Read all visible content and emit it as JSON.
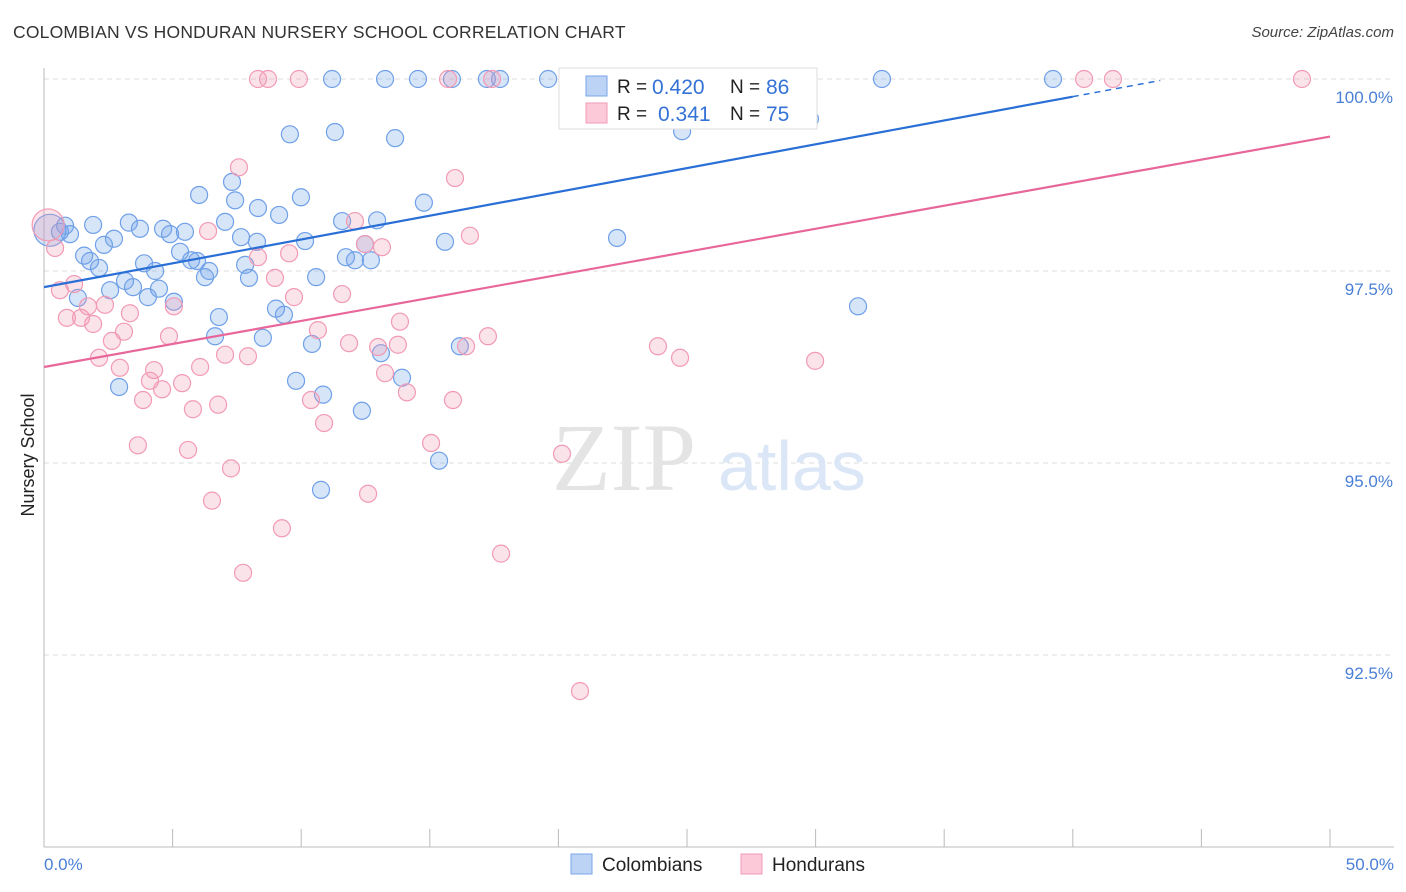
{
  "title": "COLOMBIAN VS HONDURAN NURSERY SCHOOL CORRELATION CHART",
  "source": "Source: ZipAtlas.com",
  "watermark": {
    "zip": "ZIP",
    "atlas": "atlas"
  },
  "chart_data": {
    "type": "scatter",
    "title": "COLOMBIAN VS HONDURAN NURSERY SCHOOL CORRELATION CHART",
    "xlabel": "",
    "ylabel": "Nursery School",
    "xlim": [
      0,
      50
    ],
    "ylim": [
      90,
      100.2
    ],
    "x_tick_labels": {
      "min": "0.0%",
      "max": "50.0%"
    },
    "y_ticks": [
      {
        "value": 100,
        "label": "100.0%"
      },
      {
        "value": 97.5,
        "label": "97.5%"
      },
      {
        "value": 95,
        "label": "95.0%"
      },
      {
        "value": 92.5,
        "label": "92.5%"
      }
    ],
    "grid": true,
    "legend_position": "top-center",
    "stats": [
      {
        "r_label": "R =",
        "r": "0.420",
        "n_label": "N =",
        "n": "86"
      },
      {
        "r_label": "R =",
        "r": "0.341",
        "n_label": "N =",
        "n": "75"
      }
    ],
    "series": [
      {
        "name": "Colombians",
        "color": "#6fa0e8",
        "line_color": "#2a6fd6",
        "trend": {
          "x0": 0,
          "y0": 97.29,
          "x1": 40,
          "y1": 99.77,
          "dashed_to_x": 43.4
        },
        "points": [
          [
            11.2,
            100
          ],
          [
            13.26,
            100
          ],
          [
            14.54,
            100
          ],
          [
            15.86,
            100
          ],
          [
            17.22,
            100
          ],
          [
            17.73,
            100
          ],
          [
            19.6,
            100
          ],
          [
            24.14,
            100
          ],
          [
            26.79,
            100
          ],
          [
            32.58,
            100
          ],
          [
            39.23,
            100
          ],
          [
            9.56,
            99.28
          ],
          [
            11.31,
            99.31
          ],
          [
            13.65,
            99.23
          ],
          [
            24.81,
            99.32
          ],
          [
            29.78,
            99.48
          ],
          [
            6.03,
            98.49
          ],
          [
            7.31,
            98.66
          ],
          [
            7.43,
            98.42
          ],
          [
            9.99,
            98.46
          ],
          [
            14.77,
            98.39
          ],
          [
            8.32,
            98.32
          ],
          [
            9.14,
            98.23
          ],
          [
            7.04,
            98.14
          ],
          [
            11.59,
            98.15
          ],
          [
            12.95,
            98.16
          ],
          [
            0.23,
            98.03
          ],
          [
            0.62,
            98.01
          ],
          [
            0.82,
            98.09
          ],
          [
            1.01,
            97.98
          ],
          [
            1.91,
            98.1
          ],
          [
            3.3,
            98.13
          ],
          [
            3.73,
            98.05
          ],
          [
            4.63,
            98.05
          ],
          [
            4.9,
            97.98
          ],
          [
            5.48,
            98.01
          ],
          [
            7.66,
            97.94
          ],
          [
            8.28,
            97.88
          ],
          [
            10.15,
            97.89
          ],
          [
            12.48,
            97.85
          ],
          [
            15.59,
            97.88
          ],
          [
            22.28,
            97.93
          ],
          [
            2.33,
            97.84
          ],
          [
            2.72,
            97.92
          ],
          [
            1.56,
            97.7
          ],
          [
            1.79,
            97.63
          ],
          [
            2.14,
            97.54
          ],
          [
            3.89,
            97.6
          ],
          [
            4.32,
            97.5
          ],
          [
            5.29,
            97.75
          ],
          [
            5.72,
            97.64
          ],
          [
            5.95,
            97.63
          ],
          [
            6.42,
            97.5
          ],
          [
            7.82,
            97.58
          ],
          [
            6.26,
            97.42
          ],
          [
            7.97,
            97.41
          ],
          [
            10.58,
            97.42
          ],
          [
            11.74,
            97.68
          ],
          [
            12.09,
            97.64
          ],
          [
            12.71,
            97.64
          ],
          [
            3.15,
            97.37
          ],
          [
            3.46,
            97.29
          ],
          [
            2.57,
            97.25
          ],
          [
            4.47,
            97.27
          ],
          [
            4.04,
            97.16
          ],
          [
            1.32,
            97.15
          ],
          [
            5.05,
            97.1
          ],
          [
            6.8,
            96.9
          ],
          [
            9.02,
            97.01
          ],
          [
            9.33,
            96.93
          ],
          [
            6.65,
            96.65
          ],
          [
            8.51,
            96.63
          ],
          [
            10.42,
            96.55
          ],
          [
            13.1,
            96.43
          ],
          [
            16.17,
            96.52
          ],
          [
            31.65,
            97.04
          ],
          [
            2.92,
            95.99
          ],
          [
            9.8,
            96.07
          ],
          [
            10.85,
            95.89
          ],
          [
            13.92,
            96.11
          ],
          [
            12.36,
            95.68
          ],
          [
            15.36,
            95.03
          ],
          [
            10.77,
            94.65
          ]
        ]
      },
      {
        "name": "Hondurans",
        "color": "#f29ab5",
        "line_color": "#e8679a",
        "trend": {
          "x0": 0,
          "y0": 96.25,
          "x1": 50,
          "y1": 99.25
        },
        "points": [
          [
            8.32,
            100
          ],
          [
            8.71,
            100
          ],
          [
            9.91,
            100
          ],
          [
            15.71,
            100
          ],
          [
            17.42,
            100
          ],
          [
            40.44,
            100
          ],
          [
            41.56,
            100
          ],
          [
            48.91,
            100
          ],
          [
            0.16,
            98.1
          ],
          [
            7.58,
            98.85
          ],
          [
            15.98,
            98.71
          ],
          [
            12.09,
            98.15
          ],
          [
            16.56,
            97.96
          ],
          [
            6.38,
            98.02
          ],
          [
            12.48,
            97.85
          ],
          [
            13.14,
            97.81
          ],
          [
            9.53,
            97.73
          ],
          [
            8.32,
            97.68
          ],
          [
            0.43,
            97.8
          ],
          [
            1.17,
            97.33
          ],
          [
            0.62,
            97.25
          ],
          [
            1.71,
            97.04
          ],
          [
            2.37,
            97.06
          ],
          [
            0.89,
            96.89
          ],
          [
            1.44,
            96.89
          ],
          [
            1.91,
            96.81
          ],
          [
            3.34,
            96.95
          ],
          [
            5.05,
            97.04
          ],
          [
            3.11,
            96.71
          ],
          [
            2.64,
            96.59
          ],
          [
            4.86,
            96.65
          ],
          [
            8.98,
            97.41
          ],
          [
            9.72,
            97.16
          ],
          [
            11.59,
            97.2
          ],
          [
            10.65,
            96.73
          ],
          [
            11.86,
            96.56
          ],
          [
            12.99,
            96.51
          ],
          [
            13.76,
            96.54
          ],
          [
            13.84,
            96.84
          ],
          [
            17.26,
            96.65
          ],
          [
            16.41,
            96.52
          ],
          [
            23.87,
            96.52
          ],
          [
            24.73,
            96.37
          ],
          [
            29.98,
            96.33
          ],
          [
            2.14,
            96.37
          ],
          [
            2.95,
            96.24
          ],
          [
            4.28,
            96.21
          ],
          [
            6.07,
            96.25
          ],
          [
            7.04,
            96.41
          ],
          [
            7.93,
            96.39
          ],
          [
            4.12,
            96.07
          ],
          [
            5.37,
            96.04
          ],
          [
            4.59,
            95.96
          ],
          [
            3.85,
            95.82
          ],
          [
            5.79,
            95.7
          ],
          [
            6.77,
            95.76
          ],
          [
            13.26,
            96.17
          ],
          [
            14.11,
            95.92
          ],
          [
            10.38,
            95.82
          ],
          [
            15.9,
            95.82
          ],
          [
            10.89,
            95.52
          ],
          [
            3.65,
            95.23
          ],
          [
            5.6,
            95.17
          ],
          [
            7.27,
            94.93
          ],
          [
            15.05,
            95.26
          ],
          [
            20.14,
            95.12
          ],
          [
            6.53,
            94.51
          ],
          [
            12.6,
            94.6
          ],
          [
            9.25,
            94.15
          ],
          [
            7.74,
            93.57
          ],
          [
            17.77,
            93.82
          ],
          [
            20.84,
            92.03
          ]
        ]
      }
    ]
  }
}
